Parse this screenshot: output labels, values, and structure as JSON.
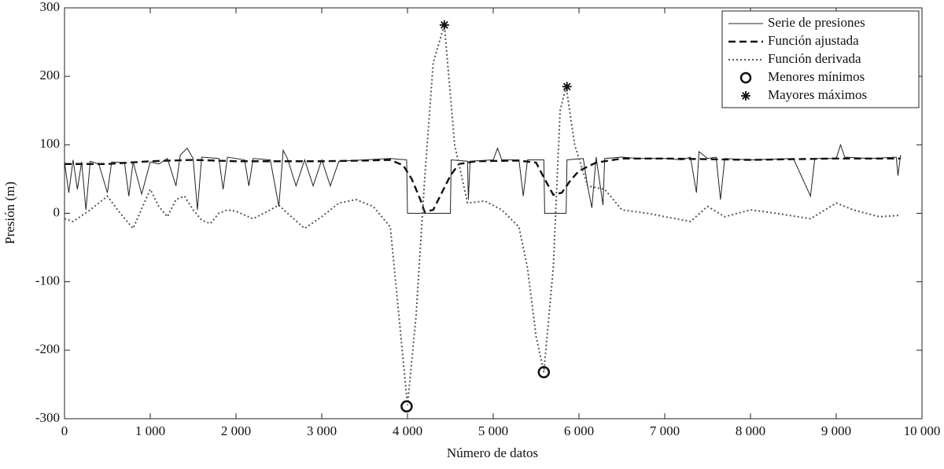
{
  "chart_data": {
    "type": "line",
    "xlabel": "Número de datos",
    "ylabel": "Presión (m)",
    "xlim": [
      0,
      10000
    ],
    "ylim": [
      -300,
      300
    ],
    "xticks": [
      0,
      {
        "value": 1000,
        "label": "1 000"
      },
      {
        "value": 2000,
        "label": "2 000"
      },
      {
        "value": 3000,
        "label": "3 000"
      },
      {
        "value": 4000,
        "label": "4 000"
      },
      {
        "value": 5000,
        "label": "5 000"
      },
      {
        "value": 6000,
        "label": "6 000"
      },
      {
        "value": 7000,
        "label": "7 000"
      },
      {
        "value": 8000,
        "label": "8 000"
      },
      {
        "value": 9000,
        "label": "9 000"
      },
      {
        "value": 10000,
        "label": "10 000"
      }
    ],
    "yticks": [
      -300,
      -200,
      -100,
      0,
      100,
      200,
      300
    ],
    "legend": "upper right",
    "series": [
      {
        "name": "Serie de presiones",
        "color": "#222222",
        "style": "solid",
        "x": [
          0,
          50,
          100,
          150,
          200,
          250,
          300,
          400,
          500,
          550,
          700,
          750,
          800,
          900,
          1000,
          1100,
          1200,
          1300,
          1350,
          1430,
          1500,
          1550,
          1600,
          1800,
          1850,
          1900,
          2100,
          2150,
          2200,
          2400,
          2500,
          2550,
          2600,
          2700,
          2800,
          2900,
          3000,
          3100,
          3200,
          3500,
          3800,
          3990,
          4000,
          4500,
          4510,
          4700,
          4710,
          4730,
          5000,
          5050,
          5100,
          5300,
          5350,
          5400,
          5590,
          5600,
          5850,
          5860,
          6050,
          6100,
          6150,
          6200,
          6280,
          6300,
          6500,
          6700,
          7000,
          7200,
          7300,
          7370,
          7400,
          7500,
          7600,
          7650,
          7700,
          8000,
          8500,
          8700,
          8750,
          9000,
          9050,
          9100,
          9400,
          9700,
          9720,
          9750
        ],
        "values": [
          75,
          30,
          78,
          35,
          75,
          5,
          76,
          72,
          30,
          75,
          74,
          25,
          75,
          28,
          75,
          72,
          80,
          40,
          85,
          95,
          80,
          5,
          82,
          80,
          35,
          82,
          78,
          40,
          80,
          78,
          10,
          92,
          80,
          40,
          78,
          40,
          78,
          40,
          76,
          78,
          80,
          78,
          0,
          0,
          78,
          76,
          20,
          76,
          78,
          95,
          78,
          78,
          25,
          78,
          78,
          0,
          0,
          78,
          80,
          40,
          8,
          82,
          12,
          80,
          82,
          80,
          80,
          78,
          82,
          30,
          90,
          80,
          82,
          20,
          80,
          78,
          80,
          25,
          80,
          80,
          100,
          82,
          80,
          82,
          55,
          85
        ]
      },
      {
        "name": "Función ajustada",
        "color": "#111111",
        "style": "dashed",
        "x": [
          0,
          500,
          1000,
          1500,
          2000,
          3000,
          3500,
          3800,
          3950,
          4050,
          4150,
          4200,
          4300,
          4400,
          4500,
          4600,
          4800,
          5300,
          5500,
          5600,
          5700,
          5800,
          5900,
          6000,
          6200,
          6500,
          7000,
          8000,
          9000,
          9750
        ],
        "values": [
          72,
          72,
          76,
          78,
          76,
          76,
          77,
          78,
          70,
          50,
          20,
          2,
          5,
          30,
          55,
          72,
          76,
          77,
          74,
          50,
          27,
          30,
          48,
          62,
          74,
          80,
          80,
          78,
          80,
          80
        ]
      },
      {
        "name": "Función derivada",
        "color": "#555555",
        "style": "dotted",
        "x": [
          0,
          100,
          300,
          500,
          650,
          800,
          1000,
          1100,
          1200,
          1300,
          1400,
          1500,
          1600,
          1700,
          1800,
          1900,
          2000,
          2200,
          2400,
          2500,
          2600,
          2800,
          3000,
          3200,
          3400,
          3600,
          3800,
          3900,
          4000,
          4100,
          4200,
          4300,
          4430,
          4550,
          4700,
          4900,
          5100,
          5300,
          5400,
          5500,
          5590,
          5700,
          5780,
          5850,
          5950,
          6100,
          6300,
          6500,
          6800,
          7000,
          7300,
          7500,
          7700,
          8000,
          8300,
          8700,
          9000,
          9200,
          9500,
          9750
        ],
        "values": [
          -8,
          -12,
          5,
          25,
          0,
          -22,
          35,
          10,
          -5,
          20,
          25,
          5,
          -10,
          -15,
          0,
          5,
          3,
          -8,
          5,
          12,
          0,
          -22,
          -5,
          15,
          20,
          10,
          -20,
          -150,
          -280,
          -150,
          50,
          220,
          275,
          100,
          15,
          18,
          5,
          -20,
          -80,
          -180,
          -232,
          -80,
          150,
          185,
          100,
          40,
          35,
          5,
          0,
          -5,
          -12,
          10,
          -5,
          5,
          0,
          -8,
          15,
          5,
          -5,
          -3
        ]
      },
      {
        "name": "Menores mínimos",
        "color": "#111111",
        "marker": "circle",
        "x": [
          3990,
          5590
        ],
        "values": [
          -282,
          -232
        ]
      },
      {
        "name": "Mayores máximos",
        "color": "#111111",
        "marker": "star",
        "x": [
          4430,
          5860
        ],
        "values": [
          275,
          185
        ]
      }
    ]
  }
}
